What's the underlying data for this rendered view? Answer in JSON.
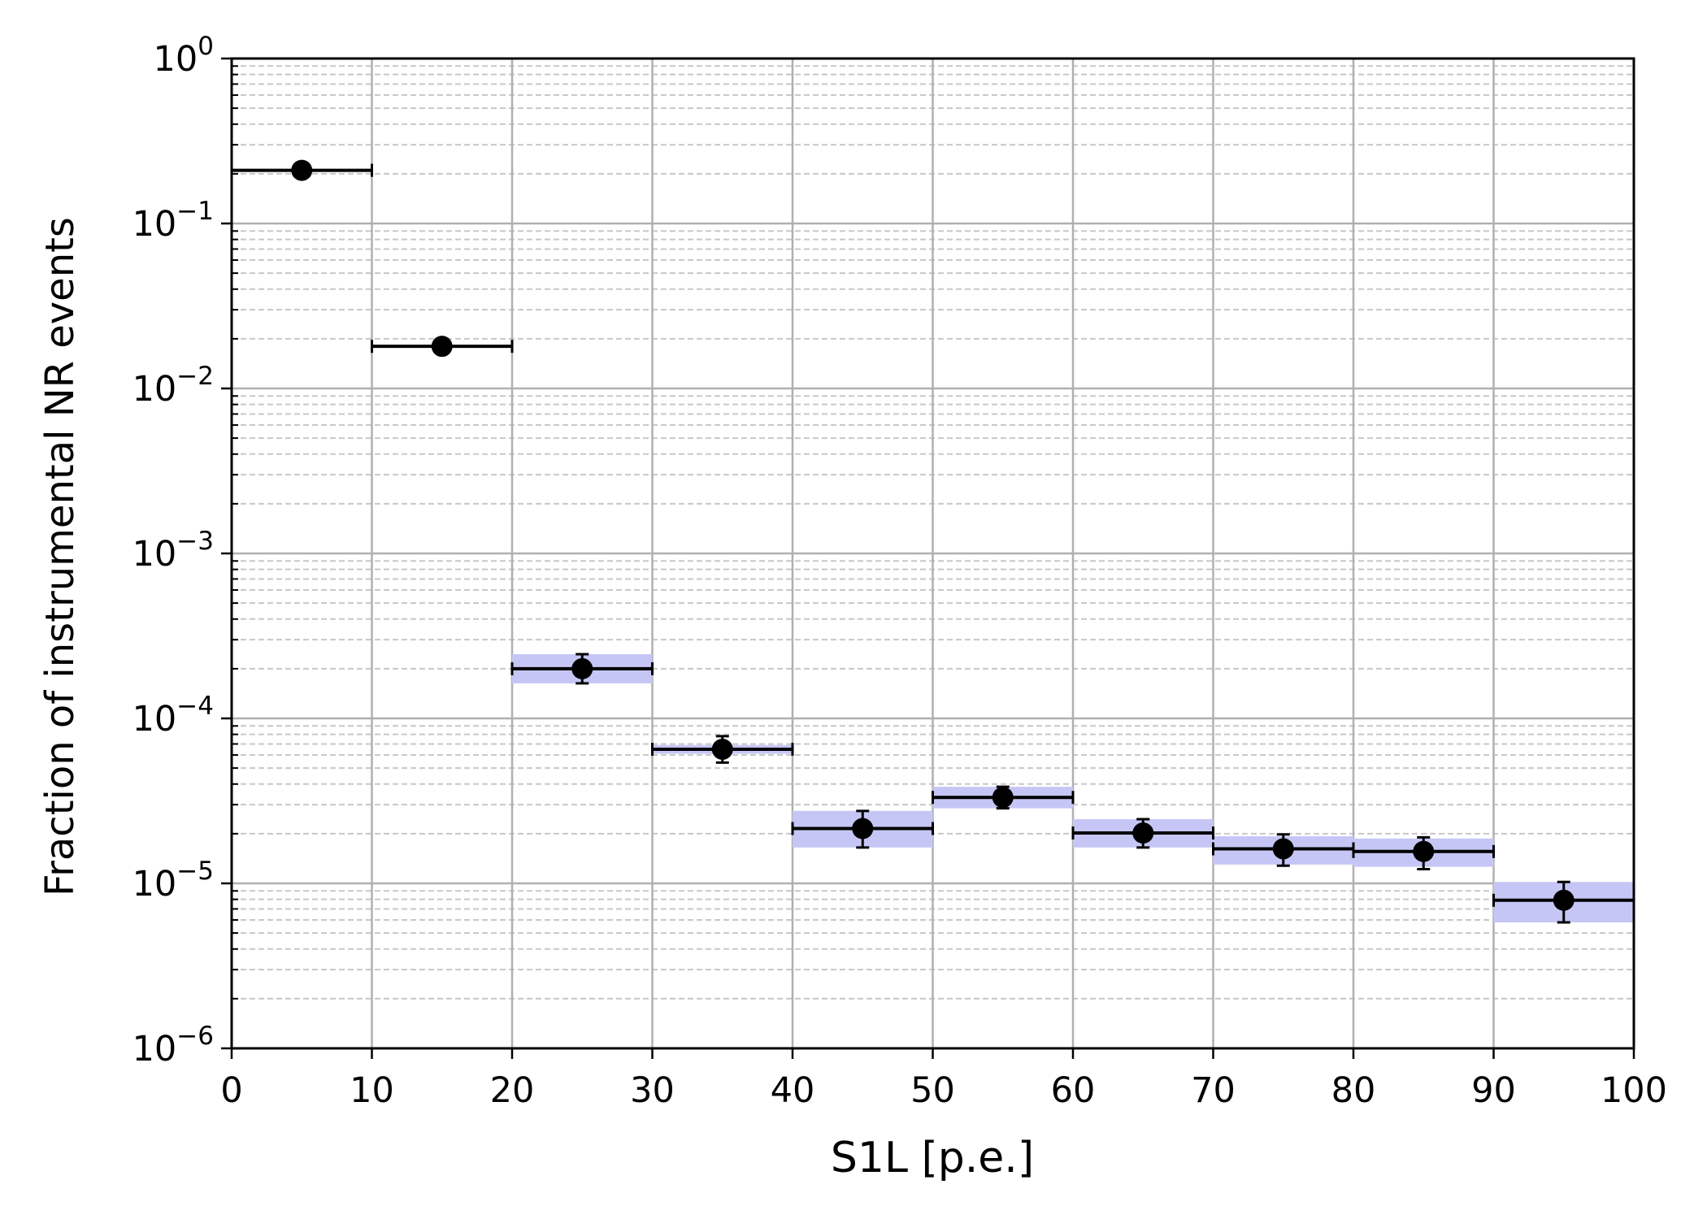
{
  "chart_data": {
    "type": "scatter",
    "title": "",
    "xlabel": "S1L [p.e.]",
    "ylabel": "Fraction of instrumental NR events",
    "xlim": [
      0,
      100
    ],
    "ylim": [
      1e-06,
      1
    ],
    "yscale": "log",
    "grid": true,
    "x_ticks": [
      0,
      10,
      20,
      30,
      40,
      50,
      60,
      70,
      80,
      90,
      100
    ],
    "y_ticks": [
      {
        "value": 1,
        "base": "10",
        "exp": "0"
      },
      {
        "value": 0.1,
        "base": "10",
        "exp": "−1"
      },
      {
        "value": 0.01,
        "base": "10",
        "exp": "−2"
      },
      {
        "value": 0.001,
        "base": "10",
        "exp": "−3"
      },
      {
        "value": 0.0001,
        "base": "10",
        "exp": "−4"
      },
      {
        "value": 1e-05,
        "base": "10",
        "exp": "−5"
      },
      {
        "value": 1e-06,
        "base": "10",
        "exp": "−6"
      }
    ],
    "points": [
      {
        "x": 5,
        "xerr": 5,
        "y": 0.21,
        "ylow": null,
        "yhigh": null,
        "band": null
      },
      {
        "x": 15,
        "xerr": 5,
        "y": 0.018,
        "ylow": null,
        "yhigh": null,
        "band": null
      },
      {
        "x": 25,
        "xerr": 5,
        "y": 0.0002,
        "ylow": 0.000163,
        "yhigh": 0.000245,
        "band": [
          0.000163,
          0.000245
        ]
      },
      {
        "x": 35,
        "xerr": 5,
        "y": 6.5e-05,
        "ylow": 5.4e-05,
        "yhigh": 7.8e-05,
        "band": [
          6.1e-05,
          6.9e-05
        ]
      },
      {
        "x": 45,
        "xerr": 5,
        "y": 2.15e-05,
        "ylow": 1.65e-05,
        "yhigh": 2.75e-05,
        "band": [
          1.65e-05,
          2.75e-05
        ]
      },
      {
        "x": 55,
        "xerr": 5,
        "y": 3.32e-05,
        "ylow": 2.85e-05,
        "yhigh": 3.85e-05,
        "band": [
          2.85e-05,
          3.85e-05
        ]
      },
      {
        "x": 65,
        "xerr": 5,
        "y": 2.02e-05,
        "ylow": 1.65e-05,
        "yhigh": 2.45e-05,
        "band": [
          1.65e-05,
          2.45e-05
        ]
      },
      {
        "x": 75,
        "xerr": 5,
        "y": 1.62e-05,
        "ylow": 1.28e-05,
        "yhigh": 1.98e-05,
        "band": [
          1.3e-05,
          1.93e-05
        ]
      },
      {
        "x": 85,
        "xerr": 5,
        "y": 1.56e-05,
        "ylow": 1.22e-05,
        "yhigh": 1.9e-05,
        "band": [
          1.26e-05,
          1.87e-05
        ]
      },
      {
        "x": 95,
        "xerr": 5,
        "y": 7.9e-06,
        "ylow": 5.8e-06,
        "yhigh": 1.02e-05,
        "band": [
          5.8e-06,
          1.02e-05
        ]
      }
    ],
    "colors": {
      "marker": "#000000",
      "band": "#c6c6f6",
      "major_grid": "#b0b0b0",
      "minor_grid": "#c8c8c8"
    }
  }
}
